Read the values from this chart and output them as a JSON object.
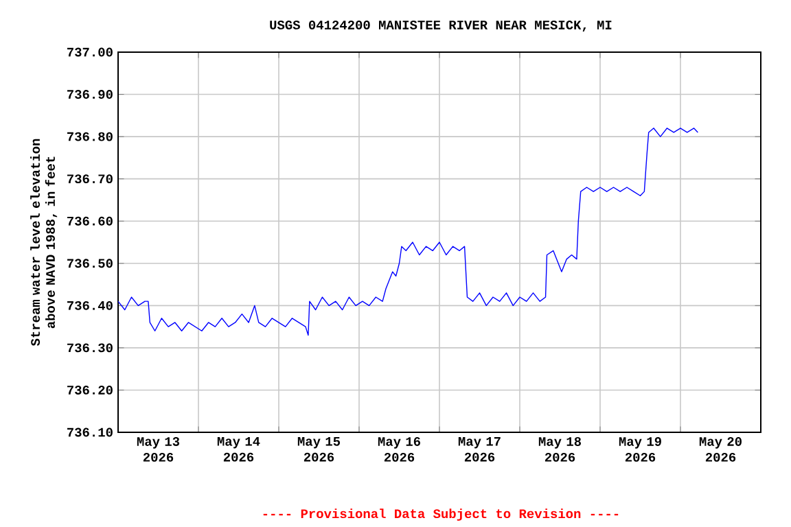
{
  "chart_data": {
    "type": "line",
    "title": "USGS 04124200 MANISTEE RIVER NEAR MESICK, MI",
    "ylabel": "Stream water level elevation above NAVD 1988, in feet",
    "annotations": [
      "---- Provisional Data Subject to Revision ----"
    ],
    "grid": true,
    "xlim": [
      "2026-05-13T00:00",
      "2026-05-21T00:00"
    ],
    "xticks": [
      {
        "value": "2026-05-13T12:00",
        "label": "May 13 2026"
      },
      {
        "value": "2026-05-14T12:00",
        "label": "May 14 2026"
      },
      {
        "value": "2026-05-15T12:00",
        "label": "May 15 2026"
      },
      {
        "value": "2026-05-16T12:00",
        "label": "May 16 2026"
      },
      {
        "value": "2026-05-17T12:00",
        "label": "May 17 2026"
      },
      {
        "value": "2026-05-18T12:00",
        "label": "May 18 2026"
      },
      {
        "value": "2026-05-19T12:00",
        "label": "May 19 2026"
      },
      {
        "value": "2026-05-20T12:00",
        "label": "May 20 2026"
      },
      {
        "value": "2026-05-14T00:00",
        "label": null
      },
      {
        "value": "2026-05-15T00:00",
        "label": null
      },
      {
        "value": "2026-05-16T00:00",
        "label": null
      },
      {
        "value": "2026-05-17T00:00",
        "label": null
      },
      {
        "value": "2026-05-18T00:00",
        "label": null
      },
      {
        "value": "2026-05-19T00:00",
        "label": null
      },
      {
        "value": "2026-05-20T00:00",
        "label": null
      }
    ],
    "ylim": [
      736.1,
      737.0
    ],
    "yticks": [
      {
        "value": 736.1,
        "label": "736.10"
      },
      {
        "value": 736.2,
        "label": "736.20"
      },
      {
        "value": 736.3,
        "label": "736.30"
      },
      {
        "value": 736.4,
        "label": "736.40"
      },
      {
        "value": 736.5,
        "label": "736.50"
      },
      {
        "value": 736.6,
        "label": "736.60"
      },
      {
        "value": 736.7,
        "label": "736.70"
      },
      {
        "value": 736.8,
        "label": "736.80"
      },
      {
        "value": 736.9,
        "label": "736.90"
      },
      {
        "value": 737.0,
        "label": "737.00"
      }
    ],
    "series": [
      {
        "color": "#0000ff",
        "x": [
          "2026-05-13T00:00",
          "2026-05-13T02:00",
          "2026-05-13T04:00",
          "2026-05-13T06:00",
          "2026-05-13T08:00",
          "2026-05-13T09:00",
          "2026-05-13T09:30",
          "2026-05-13T11:00",
          "2026-05-13T13:00",
          "2026-05-13T15:00",
          "2026-05-13T17:00",
          "2026-05-13T19:00",
          "2026-05-13T21:00",
          "2026-05-13T23:00",
          "2026-05-14T01:00",
          "2026-05-14T03:00",
          "2026-05-14T05:00",
          "2026-05-14T07:00",
          "2026-05-14T09:00",
          "2026-05-14T11:00",
          "2026-05-14T13:00",
          "2026-05-14T15:00",
          "2026-05-14T16:48",
          "2026-05-14T18:00",
          "2026-05-14T20:00",
          "2026-05-14T22:00",
          "2026-05-15T00:00",
          "2026-05-15T02:00",
          "2026-05-15T04:00",
          "2026-05-15T06:00",
          "2026-05-15T08:00",
          "2026-05-15T08:48",
          "2026-05-15T09:12",
          "2026-05-15T11:00",
          "2026-05-15T13:00",
          "2026-05-15T15:00",
          "2026-05-15T17:00",
          "2026-05-15T19:00",
          "2026-05-15T21:00",
          "2026-05-15T23:00",
          "2026-05-16T01:00",
          "2026-05-16T03:00",
          "2026-05-16T05:00",
          "2026-05-16T07:00",
          "2026-05-16T08:00",
          "2026-05-16T09:00",
          "2026-05-16T10:00",
          "2026-05-16T11:00",
          "2026-05-16T12:00",
          "2026-05-16T12:42",
          "2026-05-16T14:00",
          "2026-05-16T16:00",
          "2026-05-16T18:00",
          "2026-05-16T20:00",
          "2026-05-16T22:00",
          "2026-05-17T00:00",
          "2026-05-17T02:00",
          "2026-05-17T04:00",
          "2026-05-17T06:00",
          "2026-05-17T07:30",
          "2026-05-17T08:18",
          "2026-05-17T10:00",
          "2026-05-17T12:00",
          "2026-05-17T14:00",
          "2026-05-17T16:00",
          "2026-05-17T18:00",
          "2026-05-17T20:00",
          "2026-05-17T22:00",
          "2026-05-18T00:00",
          "2026-05-18T02:00",
          "2026-05-18T04:00",
          "2026-05-18T06:00",
          "2026-05-18T07:42",
          "2026-05-18T08:06",
          "2026-05-18T10:00",
          "2026-05-18T11:30",
          "2026-05-18T12:30",
          "2026-05-18T14:00",
          "2026-05-18T15:30",
          "2026-05-18T17:00",
          "2026-05-18T17:30",
          "2026-05-18T18:12",
          "2026-05-18T20:00",
          "2026-05-18T22:00",
          "2026-05-19T00:00",
          "2026-05-19T02:00",
          "2026-05-19T04:00",
          "2026-05-19T06:00",
          "2026-05-19T08:00",
          "2026-05-19T10:00",
          "2026-05-19T12:00",
          "2026-05-19T13:12",
          "2026-05-19T14:00",
          "2026-05-19T14:30",
          "2026-05-19T16:00",
          "2026-05-19T18:00",
          "2026-05-19T20:00",
          "2026-05-19T22:00",
          "2026-05-20T00:00",
          "2026-05-20T02:00",
          "2026-05-20T04:00",
          "2026-05-20T05:12"
        ],
        "values": [
          736.41,
          736.39,
          736.42,
          736.4,
          736.41,
          736.41,
          736.36,
          736.34,
          736.37,
          736.35,
          736.36,
          736.34,
          736.36,
          736.35,
          736.34,
          736.36,
          736.35,
          736.37,
          736.35,
          736.36,
          736.38,
          736.36,
          736.4,
          736.36,
          736.35,
          736.37,
          736.36,
          736.35,
          736.37,
          736.36,
          736.35,
          736.33,
          736.41,
          736.39,
          736.42,
          736.4,
          736.41,
          736.39,
          736.42,
          736.4,
          736.41,
          736.4,
          736.42,
          736.41,
          736.44,
          736.46,
          736.48,
          736.47,
          736.5,
          736.54,
          736.53,
          736.55,
          736.52,
          736.54,
          736.53,
          736.55,
          736.52,
          736.54,
          736.53,
          736.54,
          736.42,
          736.41,
          736.43,
          736.4,
          736.42,
          736.41,
          736.43,
          736.4,
          736.42,
          736.41,
          736.43,
          736.41,
          736.42,
          736.52,
          736.53,
          736.5,
          736.48,
          736.51,
          736.52,
          736.51,
          736.6,
          736.67,
          736.68,
          736.67,
          736.68,
          736.67,
          736.68,
          736.67,
          736.68,
          736.67,
          736.66,
          736.67,
          736.76,
          736.81,
          736.82,
          736.8,
          736.82,
          736.81,
          736.82,
          736.81,
          736.82,
          736.81
        ]
      }
    ]
  }
}
